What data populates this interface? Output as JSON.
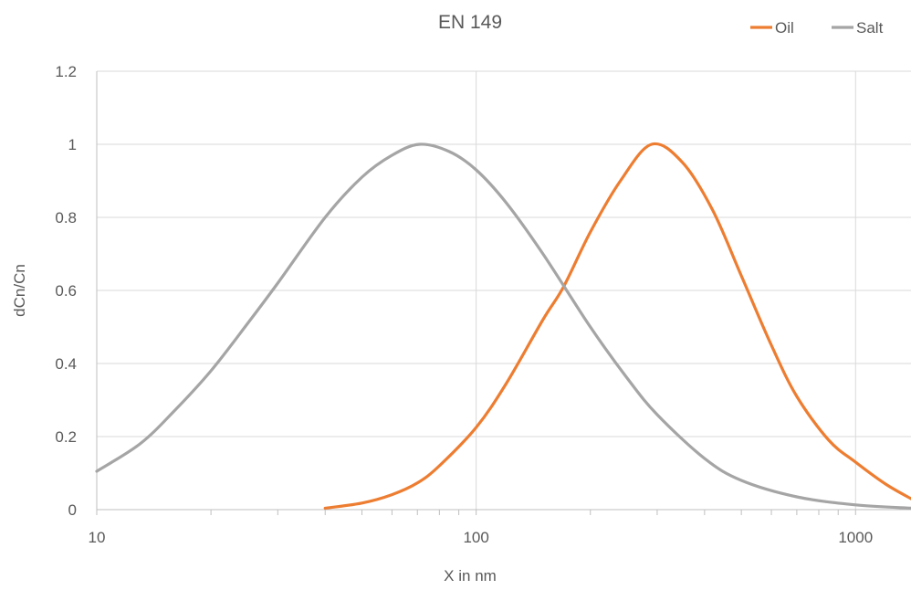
{
  "chart_data": {
    "type": "line",
    "title": "EN 149",
    "xlabel": "X in nm",
    "ylabel": "dCn/Cn",
    "x_scale": "log",
    "xlim": [
      10,
      1400
    ],
    "ylim": [
      0,
      1.2
    ],
    "x_ticks": [
      10,
      100,
      1000
    ],
    "x_tick_labels": [
      "10",
      "100",
      "1000"
    ],
    "y_ticks": [
      0,
      0.2,
      0.4,
      0.6,
      0.8,
      1,
      1.2
    ],
    "y_tick_labels": [
      "0",
      "0.2",
      "0.4",
      "0.6",
      "0.8",
      "1",
      "1.2"
    ],
    "grid": true,
    "legend_position": "top-right",
    "series": [
      {
        "name": "Oil",
        "color": "#ED7D31",
        "x": [
          40,
          50,
          60,
          70,
          80,
          100,
          120,
          150,
          170,
          200,
          240,
          290,
          350,
          420,
          500,
          600,
          700,
          850,
          1000,
          1200,
          1400
        ],
        "y": [
          0.004,
          0.018,
          0.041,
          0.073,
          0.12,
          0.225,
          0.345,
          0.52,
          0.61,
          0.76,
          0.9,
          1.0,
          0.95,
          0.82,
          0.64,
          0.45,
          0.31,
          0.19,
          0.13,
          0.07,
          0.03
        ]
      },
      {
        "name": "Salt",
        "color": "#A5A5A5",
        "x": [
          10,
          13,
          16,
          20,
          25,
          30,
          40,
          50,
          60,
          71,
          85,
          100,
          120,
          150,
          200,
          250,
          300,
          400,
          500,
          700,
          1000,
          1400
        ],
        "y": [
          0.105,
          0.18,
          0.27,
          0.38,
          0.51,
          0.62,
          0.8,
          0.91,
          0.97,
          1.0,
          0.98,
          0.93,
          0.84,
          0.7,
          0.5,
          0.36,
          0.26,
          0.14,
          0.08,
          0.035,
          0.013,
          0.004
        ]
      }
    ]
  }
}
